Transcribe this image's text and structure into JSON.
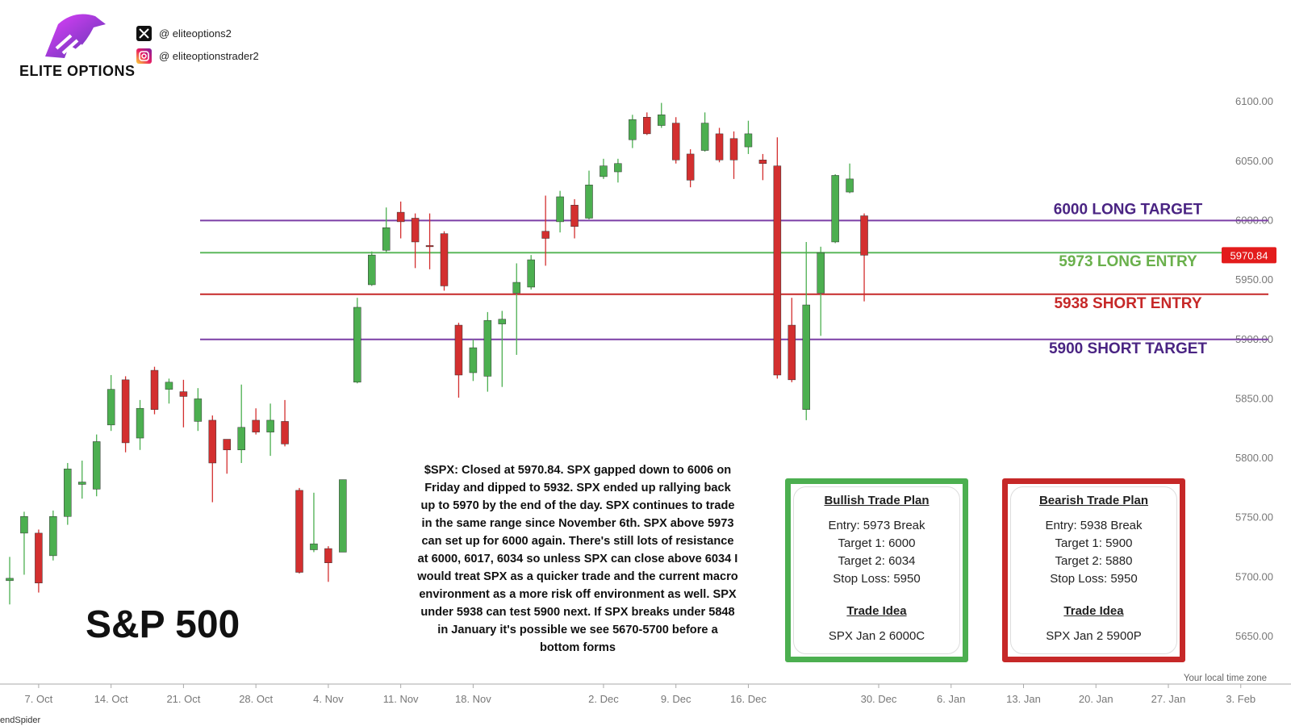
{
  "header": {
    "brand": "ELITE OPTIONS",
    "socials": [
      "@ eliteoptions2",
      "@ eliteoptionstrader2"
    ]
  },
  "chart_data": {
    "type": "candlestick",
    "title": "S&P 500",
    "x": [
      "3. Oct",
      "4. Oct",
      "7. Oct",
      "8. Oct",
      "9. Oct",
      "10. Oct",
      "11. Oct",
      "14. Oct",
      "15. Oct",
      "16. Oct",
      "17. Oct",
      "18. Oct",
      "21. Oct",
      "22. Oct",
      "23. Oct",
      "24. Oct",
      "25. Oct",
      "28. Oct",
      "29. Oct",
      "30. Oct",
      "31. Oct",
      "1. Nov",
      "4. Nov",
      "5. Nov",
      "6. Nov",
      "7. Nov",
      "8. Nov",
      "11. Nov",
      "12. Nov",
      "13. Nov",
      "14. Nov",
      "15. Nov",
      "18. Nov",
      "19. Nov",
      "20. Nov",
      "21. Nov",
      "22. Nov",
      "25. Nov",
      "26. Nov",
      "27. Nov",
      "29. Nov",
      "2. Dec",
      "3. Dec",
      "4. Dec",
      "5. Dec",
      "6. Dec",
      "9. Dec",
      "10. Dec",
      "11. Dec",
      "12. Dec",
      "13. Dec",
      "16. Dec",
      "17. Dec",
      "18. Dec",
      "19. Dec",
      "20. Dec",
      "23. Dec",
      "24. Dec",
      "26. Dec",
      "27. Dec"
    ],
    "open": [
      5697,
      5737,
      5737,
      5718,
      5751,
      5778,
      5774,
      5828,
      5866,
      5817,
      5874,
      5858,
      5856,
      5831,
      5832,
      5816,
      5807,
      5832,
      5822,
      5831,
      5773,
      5723,
      5724,
      5721,
      5864,
      5946,
      5975,
      6007,
      6002,
      5979,
      5989,
      5912,
      5872,
      5869,
      5913,
      5939,
      5944,
      5991,
      5999,
      6013,
      6002,
      6037,
      6041,
      6068,
      6087,
      6080,
      6082,
      6056,
      6059,
      6073,
      6069,
      6062,
      6051,
      6046,
      5912,
      5841,
      5939,
      5982,
      6024,
      6004
    ],
    "high": [
      5717,
      5755,
      5740,
      5756,
      5796,
      5798,
      5820,
      5870,
      5869,
      5849,
      5877,
      5867,
      5866,
      5859,
      5836,
      5816,
      5862,
      5842,
      5846,
      5849,
      5775,
      5771,
      5726,
      5782,
      5935,
      5974,
      6011,
      6016,
      6006,
      6006,
      5991,
      5914,
      5900,
      5923,
      5924,
      5964,
      5971,
      6021,
      6025,
      6018,
      6042,
      6052,
      6052,
      6089,
      6091,
      6099,
      6087,
      6060,
      6091,
      6078,
      6075,
      6084,
      6056,
      6070,
      5935,
      5982,
      5978,
      6039,
      6048,
      6006
    ],
    "low": [
      5677,
      5702,
      5687,
      5714,
      5744,
      5766,
      5768,
      5823,
      5805,
      5807,
      5837,
      5846,
      5826,
      5823,
      5763,
      5787,
      5796,
      5820,
      5802,
      5810,
      5703,
      5721,
      5696,
      5721,
      5863,
      5945,
      5973,
      5985,
      5960,
      5959,
      5941,
      5851,
      5865,
      5856,
      5860,
      5887,
      5942,
      5962,
      5990,
      5985,
      6001,
      6035,
      6032,
      6061,
      6072,
      6078,
      6048,
      6028,
      6058,
      6049,
      6035,
      6056,
      6034,
      5867,
      5864,
      5832,
      5903,
      5981,
      6023,
      5932
    ],
    "close": [
      5699,
      5751,
      5695,
      5751,
      5791,
      5780,
      5814,
      5858,
      5813,
      5842,
      5841,
      5864,
      5852,
      5850,
      5796,
      5807,
      5826,
      5822,
      5832,
      5812,
      5704,
      5728,
      5712,
      5782,
      5927,
      5971,
      5994,
      5999,
      5982,
      5978,
      5945,
      5870,
      5893,
      5916,
      5917,
      5948,
      5967,
      5985,
      6020,
      5995,
      6030,
      6046,
      6048,
      6085,
      6073,
      6089,
      6051,
      6034,
      6082,
      6051,
      6051,
      6073,
      6048,
      5870,
      5866,
      5929,
      5973,
      6038,
      6035,
      5970.84
    ],
    "up_color": "#4caf50",
    "down_color": "#d32f2f",
    "ylim": [
      5610,
      6115
    ],
    "yticks": [
      {
        "value": 5650,
        "label": "5650.00"
      },
      {
        "value": 5700,
        "label": "5700.00"
      },
      {
        "value": 5750,
        "label": "5750.00"
      },
      {
        "value": 5800,
        "label": "5800.00"
      },
      {
        "value": 5850,
        "label": "5850.00"
      },
      {
        "value": 5900,
        "label": "5900.00"
      },
      {
        "value": 5950,
        "label": "5950.00"
      },
      {
        "value": 6000,
        "label": "6000.00"
      },
      {
        "value": 6050,
        "label": "6050.00"
      },
      {
        "value": 6100,
        "label": "6100.00"
      }
    ],
    "xticks": [
      "7. Oct",
      "14. Oct",
      "21. Oct",
      "28. Oct",
      "4. Nov",
      "11. Nov",
      "18. Nov",
      "2. Dec",
      "9. Dec",
      "16. Dec",
      "30. Dec",
      "6. Jan",
      "13. Jan",
      "20. Jan",
      "27. Jan",
      "3. Feb"
    ],
    "grid": false,
    "levels": [
      {
        "value": 6000,
        "label": "6000 LONG TARGET",
        "color": "#7b3fa6",
        "label_color": "#4a2483"
      },
      {
        "value": 5973,
        "label": "5973 LONG ENTRY",
        "color": "#5cb85c",
        "label_color": "#6ab04c"
      },
      {
        "value": 5938,
        "label": "5938 SHORT ENTRY",
        "color": "#c62828",
        "label_color": "#c62828"
      },
      {
        "value": 5900,
        "label": "5900 SHORT TARGET",
        "color": "#7b3fa6",
        "label_color": "#4a2483"
      }
    ],
    "last_price": 5970.84,
    "timezone_note": "Your local time zone",
    "watermark": "endSpider"
  },
  "commentary": "$SPX: Closed at 5970.84. SPX gapped down to 6006 on Friday and dipped to 5932. SPX ended up rallying back up to 5970 by the end of the day. SPX continues to trade in the same range since November 6th. SPX above 5973 can set up for 6000 again. There's still lots of resistance at 6000, 6017, 6034 so unless SPX can close above 6034 I would treat SPX as a quicker trade and the current macro environment as a more risk off environment as well. SPX under 5938 can test 5900 next. If SPX breaks under 5848 in January it's possible we see 5670-5700 before a bottom forms",
  "plans": [
    {
      "title": "Bullish Trade Plan",
      "lines": [
        "Entry: 5973 Break",
        "Target 1: 6000",
        "Target 2: 6034",
        "Stop Loss: 5950"
      ],
      "idea_title": "Trade Idea",
      "idea": "SPX Jan 2 6000C"
    },
    {
      "title": "Bearish Trade Plan",
      "lines": [
        "Entry: 5938 Break",
        "Target 1: 5900",
        "Target 2: 5880",
        "Stop Loss: 5950"
      ],
      "idea_title": "Trade Idea",
      "idea": "SPX Jan 2 5900P"
    }
  ]
}
